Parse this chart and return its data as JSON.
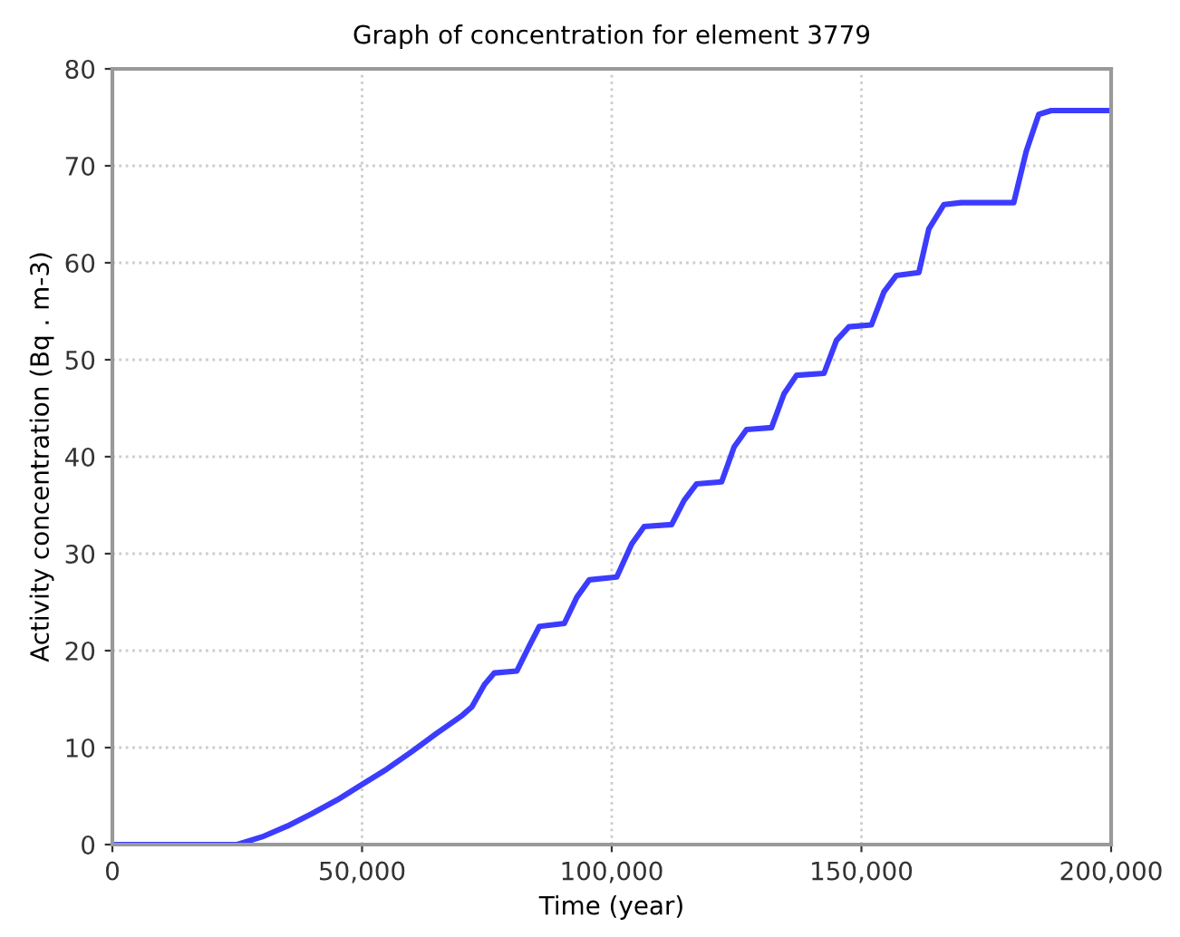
{
  "chart_data": {
    "type": "line",
    "title": "Graph of concentration for element 3779",
    "xlabel": "Time (year)",
    "ylabel": "Activity concentration (Bq . m-3)",
    "x": [
      0,
      25000,
      30000,
      35000,
      40000,
      45000,
      50000,
      55000,
      60000,
      65000,
      70000,
      72000,
      74500,
      76500,
      81000,
      83500,
      85500,
      90500,
      93000,
      95500,
      101000,
      104000,
      106500,
      112000,
      114500,
      117000,
      122000,
      124500,
      127000,
      132000,
      134500,
      137000,
      142500,
      145000,
      147500,
      152000,
      154500,
      157000,
      161500,
      163500,
      166500,
      170000,
      180500,
      183000,
      185500,
      188000,
      200000
    ],
    "series": [
      {
        "color": "#3c3cff",
        "values": [
          0,
          0,
          0.8,
          1.9,
          3.2,
          4.6,
          6.2,
          7.8,
          9.6,
          11.5,
          13.3,
          14.2,
          16.5,
          17.7,
          17.9,
          20.5,
          22.5,
          22.8,
          25.5,
          27.3,
          27.6,
          31,
          32.8,
          33,
          35.5,
          37.2,
          37.4,
          41,
          42.8,
          43,
          46.5,
          48.4,
          48.6,
          52,
          53.4,
          53.6,
          57,
          58.7,
          59,
          63.5,
          66,
          66.2,
          66.2,
          71.5,
          75.3,
          75.7,
          75.7
        ]
      }
    ],
    "xlim": [
      0,
      200000
    ],
    "xticks": [
      0,
      {
        "value": 50000,
        "label": "50,000"
      },
      {
        "value": 100000,
        "label": "100,000"
      },
      {
        "value": 150000,
        "label": "150,000"
      },
      {
        "value": 200000,
        "label": "200,000"
      }
    ],
    "ylim": [
      0,
      80
    ],
    "yticks": [
      0,
      10,
      20,
      30,
      40,
      50,
      60,
      70,
      80
    ],
    "grid": true,
    "marker": "none",
    "line_style": "solid"
  }
}
